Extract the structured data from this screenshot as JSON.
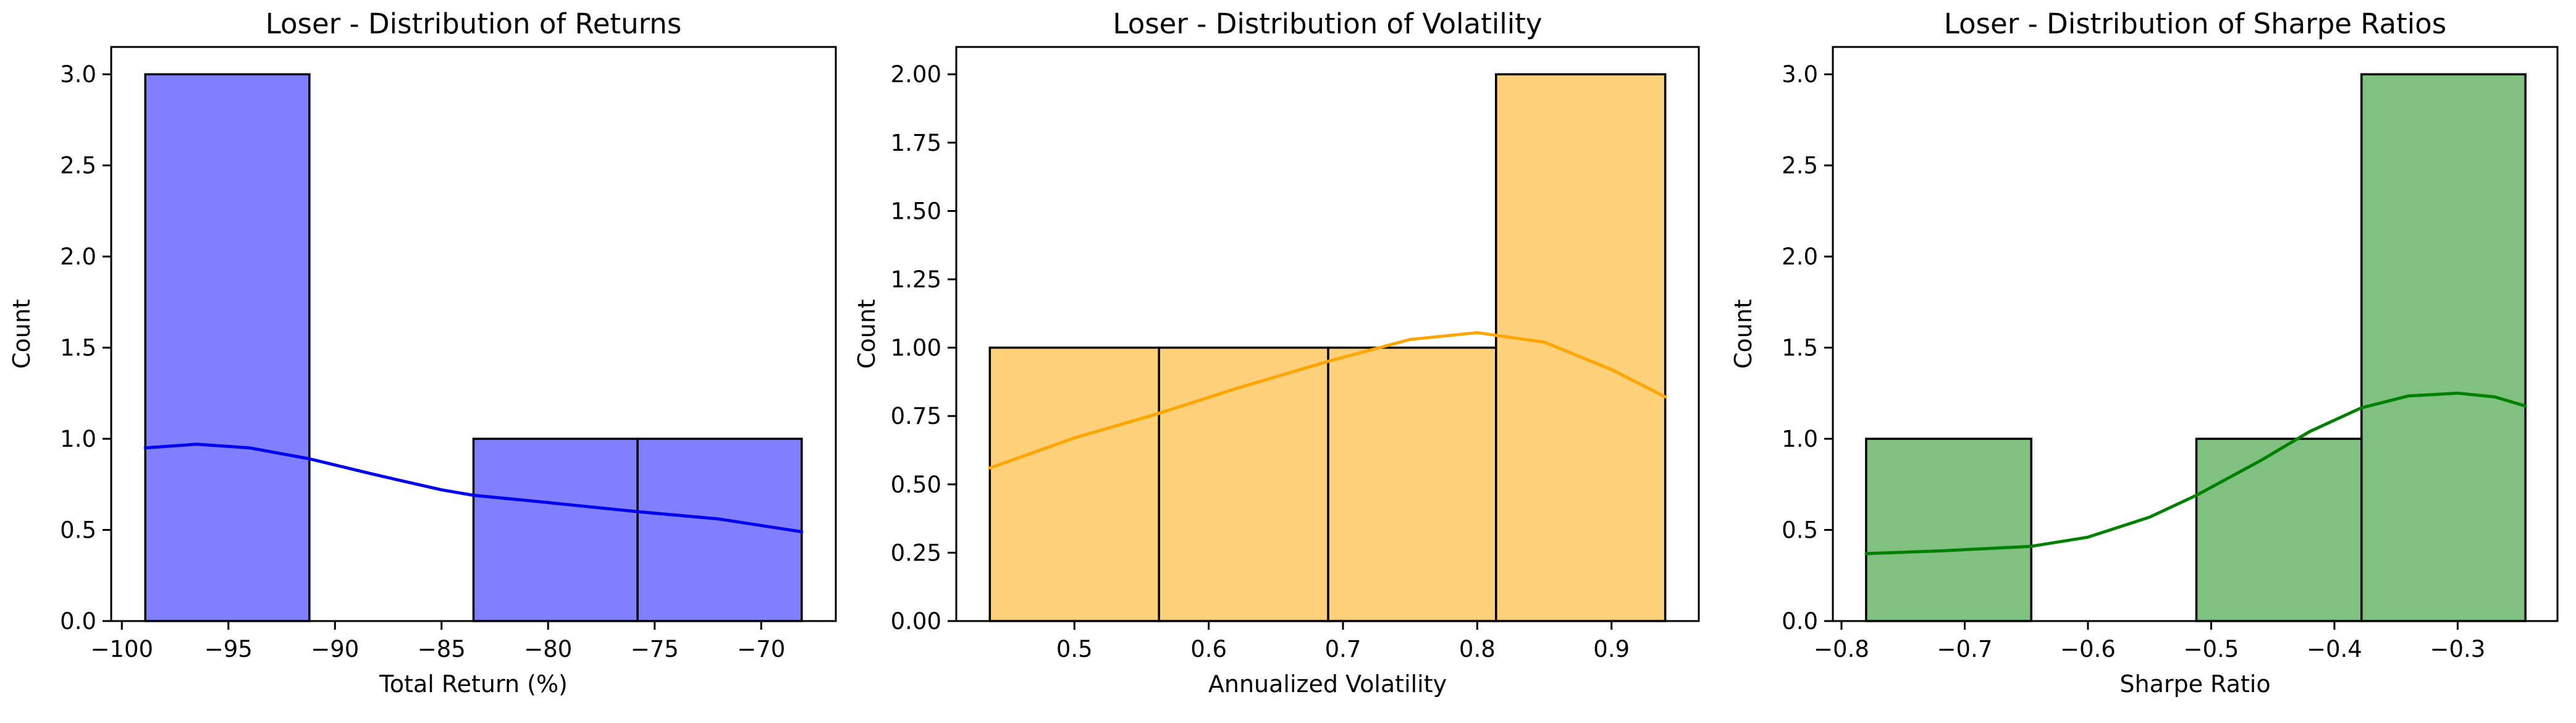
{
  "chart_data": [
    {
      "type": "histogram",
      "title": "Loser - Distribution of Returns",
      "xlabel": "Total Return (%)",
      "ylabel": "Count",
      "xlim": [
        -100.5,
        -66.5
      ],
      "ylim": [
        0,
        3.15
      ],
      "xticks": [
        -100,
        -95,
        -90,
        -85,
        -80,
        -75,
        -70
      ],
      "xtick_labels": [
        "−100",
        "−95",
        "−90",
        "−85",
        "−80",
        "−75",
        "−70"
      ],
      "yticks": [
        0,
        0.5,
        1,
        1.5,
        2,
        2.5,
        3
      ],
      "ytick_labels": [
        "0.0",
        "0.5",
        "1.0",
        "1.5",
        "2.0",
        "2.5",
        "3.0"
      ],
      "bins": [
        {
          "x0": -98.9,
          "x1": -91.2,
          "count": 3
        },
        {
          "x0": -91.2,
          "x1": -83.5,
          "count": 0
        },
        {
          "x0": -83.5,
          "x1": -75.8,
          "count": 1
        },
        {
          "x0": -75.8,
          "x1": -68.1,
          "count": 1
        }
      ],
      "kde": {
        "x": [
          -98.9,
          -96.5,
          -94,
          -91.2,
          -88,
          -85,
          -83.5,
          -80,
          -75.8,
          -72,
          -68.1
        ],
        "y": [
          0.95,
          0.97,
          0.95,
          0.89,
          0.8,
          0.72,
          0.69,
          0.65,
          0.6,
          0.56,
          0.49
        ]
      },
      "colors": {
        "bar": "#8080ff",
        "edge": "#000000",
        "line": "#0000ee"
      }
    },
    {
      "type": "histogram",
      "title": "Loser - Distribution of Volatility",
      "xlabel": "Annualized Volatility",
      "ylabel": "Count",
      "xlim": [
        0.412,
        0.965
      ],
      "ylim": [
        0,
        2.1
      ],
      "xticks": [
        0.5,
        0.6,
        0.7,
        0.8,
        0.9
      ],
      "xtick_labels": [
        "0.5",
        "0.6",
        "0.7",
        "0.8",
        "0.9"
      ],
      "yticks": [
        0,
        0.25,
        0.5,
        0.75,
        1,
        1.25,
        1.5,
        1.75,
        2
      ],
      "ytick_labels": [
        "0.00",
        "0.25",
        "0.50",
        "0.75",
        "1.00",
        "1.25",
        "1.50",
        "1.75",
        "2.00"
      ],
      "bins": [
        {
          "x0": 0.437,
          "x1": 0.563,
          "count": 1
        },
        {
          "x0": 0.563,
          "x1": 0.689,
          "count": 1
        },
        {
          "x0": 0.689,
          "x1": 0.814,
          "count": 1
        },
        {
          "x0": 0.814,
          "x1": 0.94,
          "count": 2
        }
      ],
      "kde": {
        "x": [
          0.437,
          0.5,
          0.563,
          0.62,
          0.689,
          0.75,
          0.8,
          0.85,
          0.9,
          0.94
        ],
        "y": [
          0.56,
          0.67,
          0.76,
          0.85,
          0.95,
          1.03,
          1.055,
          1.02,
          0.92,
          0.82
        ]
      },
      "colors": {
        "bar": "#ffd07a",
        "edge": "#000000",
        "line": "#ffa500"
      }
    },
    {
      "type": "histogram",
      "title": "Loser - Distribution of Sharpe Ratios",
      "xlabel": "Sharpe Ratio",
      "ylabel": "Count",
      "xlim": [
        -0.807,
        -0.219
      ],
      "ylim": [
        0,
        3.15
      ],
      "xticks": [
        -0.8,
        -0.7,
        -0.6,
        -0.5,
        -0.4,
        -0.3
      ],
      "xtick_labels": [
        "−0.8",
        "−0.7",
        "−0.6",
        "−0.5",
        "−0.4",
        "−0.3"
      ],
      "yticks": [
        0,
        0.5,
        1,
        1.5,
        2,
        2.5,
        3
      ],
      "ytick_labels": [
        "0.0",
        "0.5",
        "1.0",
        "1.5",
        "2.0",
        "2.5",
        "3.0"
      ],
      "bins": [
        {
          "x0": -0.78,
          "x1": -0.646,
          "count": 1
        },
        {
          "x0": -0.646,
          "x1": -0.512,
          "count": 0
        },
        {
          "x0": -0.512,
          "x1": -0.378,
          "count": 1
        },
        {
          "x0": -0.378,
          "x1": -0.245,
          "count": 3
        }
      ],
      "kde": {
        "x": [
          -0.78,
          -0.72,
          -0.646,
          -0.6,
          -0.55,
          -0.512,
          -0.46,
          -0.42,
          -0.378,
          -0.34,
          -0.3,
          -0.27,
          -0.245
        ],
        "y": [
          0.37,
          0.385,
          0.41,
          0.46,
          0.57,
          0.69,
          0.88,
          1.04,
          1.17,
          1.235,
          1.25,
          1.23,
          1.18
        ]
      },
      "colors": {
        "bar": "#80c080",
        "edge": "#000000",
        "line": "#008000"
      }
    }
  ]
}
